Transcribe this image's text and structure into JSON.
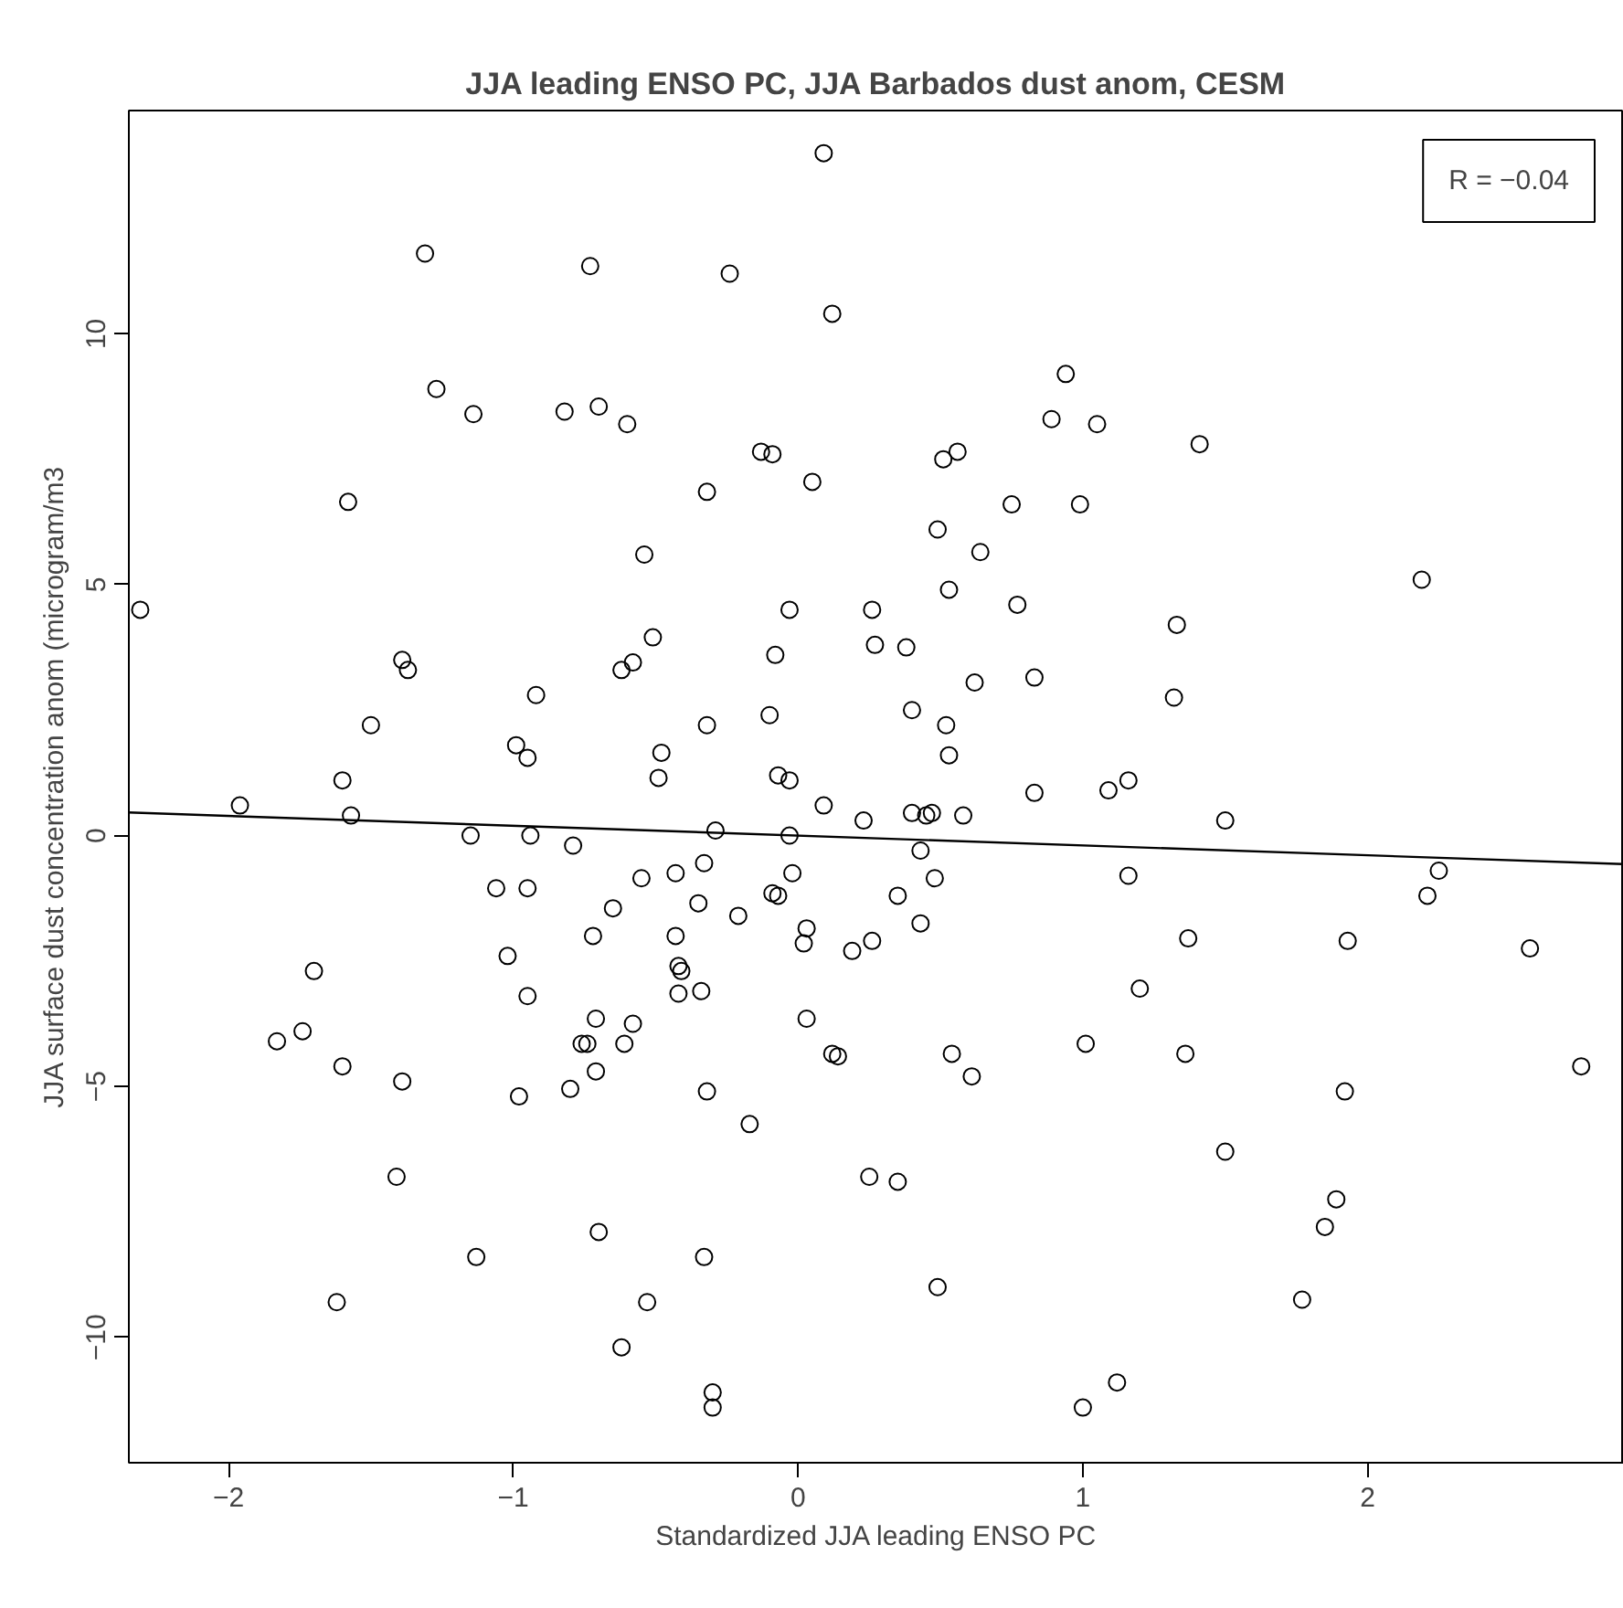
{
  "chart_data": {
    "type": "scatter",
    "title": "JJA leading ENSO PC, JJA Barbados dust anom, CESM",
    "xlabel": "Standardized JJA leading ENSO PC",
    "ylabel": "JJA surface dust concentration anom (microgram/m3",
    "xlim": [
      -2.35,
      2.9
    ],
    "ylim": [
      -12.5,
      14.45
    ],
    "xticks": [
      {
        "value": -2,
        "label": "−2"
      },
      {
        "value": -1,
        "label": "−1"
      },
      0,
      1,
      2
    ],
    "yticks": [
      {
        "value": -10,
        "label": "−10"
      },
      {
        "value": -5,
        "label": "−5"
      },
      0,
      5,
      10
    ],
    "grid": false,
    "annotations": [
      "R = −0.04"
    ],
    "series": [
      {
        "marker": "circle",
        "color": "#000000",
        "x": [
          -2.31,
          -1.96,
          -1.83,
          -1.74,
          -1.7,
          -1.62,
          -1.6,
          -1.6,
          -1.58,
          -1.57,
          -1.5,
          -1.41,
          -1.39,
          -1.39,
          -1.37,
          -1.31,
          -1.27,
          -1.14,
          -1.15,
          -1.13,
          -1.06,
          -1.02,
          -0.99,
          -0.98,
          -0.95,
          -0.95,
          -0.95,
          -0.94,
          -0.92,
          -0.82,
          -0.8,
          -0.79,
          -0.76,
          -0.74,
          -0.73,
          -0.72,
          -0.71,
          -0.71,
          -0.7,
          -0.7,
          -0.65,
          -0.62,
          -0.62,
          -0.61,
          -0.6,
          -0.58,
          -0.58,
          -0.55,
          -0.54,
          -0.53,
          -0.51,
          -0.49,
          -0.48,
          -0.43,
          -0.43,
          -0.42,
          -0.42,
          -0.41,
          -0.24,
          -0.32,
          -0.32,
          -0.33,
          -0.35,
          -0.34,
          -0.32,
          -0.33,
          -0.3,
          -0.3,
          -0.29,
          -0.21,
          -0.17,
          -0.13,
          -0.09,
          -0.1,
          -0.08,
          -0.07,
          -0.09,
          -0.07,
          -0.03,
          -0.03,
          -0.03,
          -0.02,
          0.02,
          0.03,
          0.03,
          0.05,
          0.09,
          0.09,
          0.12,
          0.12,
          0.14,
          0.19,
          0.23,
          0.25,
          0.26,
          0.26,
          0.27,
          0.35,
          0.35,
          0.38,
          0.4,
          0.4,
          0.43,
          0.43,
          0.45,
          0.47,
          0.48,
          0.49,
          0.49,
          0.51,
          0.52,
          0.53,
          0.53,
          0.54,
          0.56,
          0.58,
          0.62,
          0.61,
          0.64,
          0.75,
          0.77,
          0.83,
          0.83,
          0.89,
          0.94,
          0.99,
          1.01,
          1.0,
          1.05,
          1.09,
          1.12,
          1.16,
          1.16,
          1.2,
          1.32,
          1.33,
          1.36,
          1.37,
          1.41,
          1.5,
          1.5,
          1.77,
          1.85,
          1.89,
          1.92,
          1.93,
          2.19,
          2.21,
          2.25,
          2.57,
          2.75
        ],
        "values": [
          4.5,
          0.6,
          -4.1,
          -3.9,
          -2.7,
          -9.3,
          1.1,
          -4.6,
          6.65,
          0.4,
          2.2,
          -6.8,
          -4.9,
          3.5,
          3.3,
          11.6,
          8.9,
          8.4,
          0.0,
          -8.4,
          -1.05,
          -2.4,
          1.8,
          -5.2,
          -1.05,
          1.55,
          -3.2,
          0.0,
          2.8,
          8.45,
          -5.05,
          -0.2,
          -4.15,
          -4.15,
          11.35,
          -2.0,
          -4.7,
          -3.65,
          -7.9,
          8.55,
          -1.45,
          3.3,
          -10.2,
          -4.15,
          8.2,
          -3.75,
          3.45,
          -0.85,
          5.6,
          -9.3,
          3.95,
          1.15,
          1.65,
          -0.75,
          -2.0,
          -3.15,
          -2.6,
          -2.7,
          11.2,
          6.85,
          2.2,
          -0.55,
          -1.35,
          -3.1,
          -5.1,
          -8.4,
          -11.1,
          -11.4,
          0.1,
          -1.6,
          -5.75,
          7.65,
          7.6,
          2.4,
          3.6,
          1.2,
          -1.15,
          -1.2,
          4.5,
          1.1,
          0.0,
          -0.75,
          -2.15,
          -1.85,
          -3.65,
          7.05,
          13.6,
          0.6,
          10.4,
          -4.35,
          -4.4,
          -2.3,
          0.3,
          -6.8,
          4.5,
          -2.1,
          3.8,
          -6.9,
          -1.2,
          3.75,
          2.5,
          0.45,
          -0.3,
          -1.75,
          0.4,
          0.45,
          -0.85,
          -9.0,
          6.1,
          7.5,
          2.2,
          4.9,
          1.6,
          -4.35,
          7.65,
          0.4,
          3.05,
          -4.8,
          5.65,
          6.6,
          4.6,
          0.85,
          3.15,
          8.3,
          9.2,
          6.6,
          -4.15,
          -11.4,
          8.2,
          0.9,
          -10.9,
          1.1,
          -0.8,
          -3.05,
          2.75,
          4.2,
          -4.35,
          -2.05,
          7.8,
          0.3,
          -6.3,
          -9.25,
          -7.8,
          -7.25,
          -5.1,
          -2.1,
          5.1,
          -1.2,
          -0.7,
          -2.25,
          -4.6
        ]
      },
      {
        "type": "line",
        "marker": "none",
        "color": "#000000",
        "x": [
          -2.35,
          2.9
        ],
        "values": [
          0.46,
          -0.57
        ]
      }
    ]
  }
}
